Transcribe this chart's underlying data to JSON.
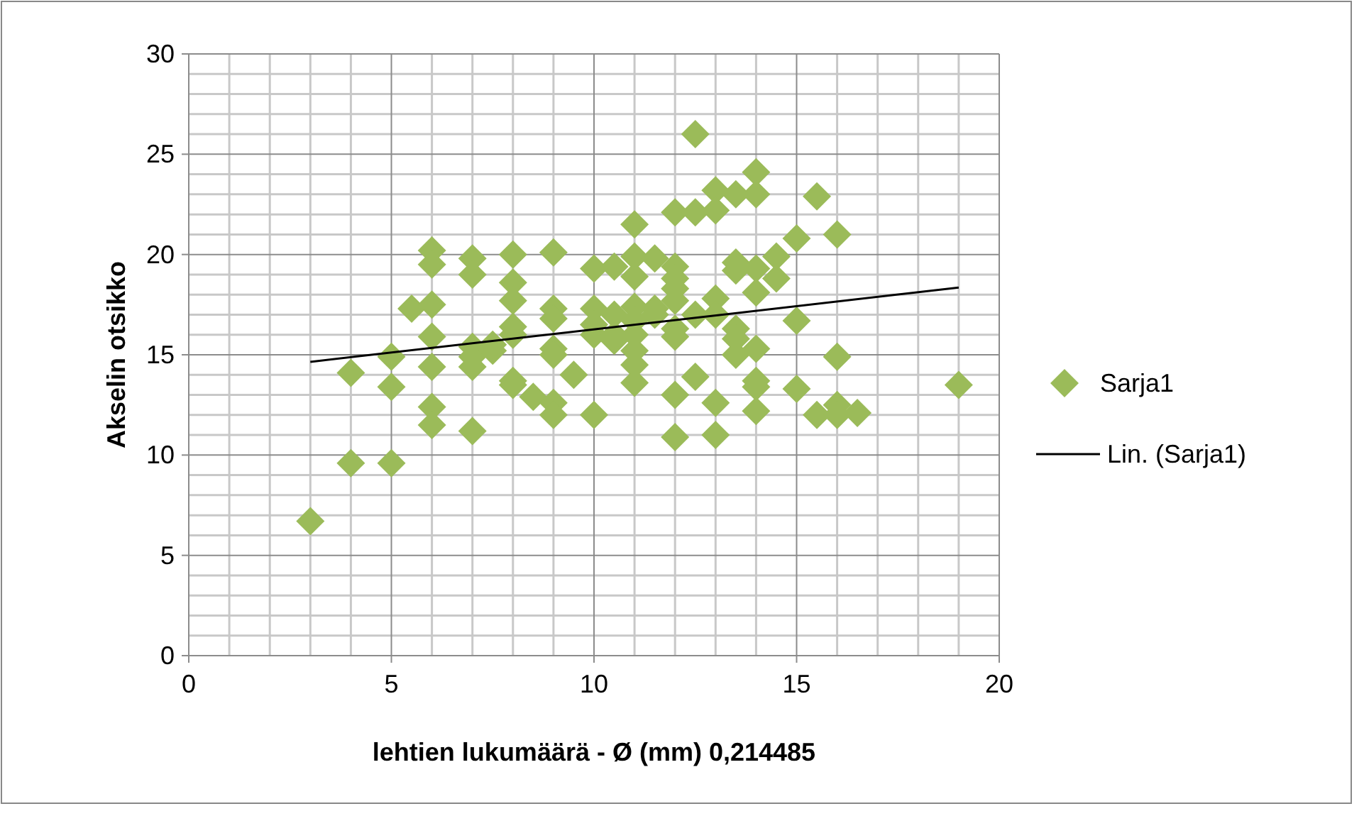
{
  "chart_data": {
    "type": "scatter",
    "xlabel": "lehtien lukumäärä - Ø (mm)  0,214485",
    "ylabel": "Akselin otsikko",
    "xlim": [
      0,
      20
    ],
    "xticks": [
      0,
      5,
      10,
      15,
      20
    ],
    "ylim": [
      0,
      30
    ],
    "yticks": [
      0,
      5,
      10,
      15,
      20,
      25,
      30
    ],
    "grid": true,
    "legend": "right",
    "series": [
      {
        "name": "Sarja1",
        "marker": "diamond",
        "color": "#9bbb59",
        "x": [
          3,
          4,
          4,
          5,
          5,
          5,
          5.5,
          6,
          6,
          6,
          6,
          6,
          6,
          6,
          7,
          7,
          7,
          7,
          7,
          7,
          7.5,
          7.5,
          8,
          8,
          8,
          8,
          8,
          8,
          8,
          8.5,
          9,
          9,
          9,
          9,
          9,
          9,
          9,
          9.5,
          10,
          10,
          10,
          10,
          10,
          10.5,
          10.5,
          10.5,
          10.5,
          11,
          11,
          11,
          11,
          11,
          11,
          11,
          11,
          11,
          11.5,
          11.5,
          11.5,
          12,
          12,
          12,
          12,
          12,
          12,
          12,
          12,
          12,
          12.5,
          12.5,
          12.5,
          12.5,
          13,
          13,
          13,
          13,
          13,
          13,
          13.5,
          13.5,
          13.5,
          13.5,
          13.5,
          13.5,
          14,
          14,
          14,
          14,
          14,
          14,
          14,
          14,
          14.5,
          14.5,
          15,
          15,
          15,
          15.5,
          15.5,
          16,
          16,
          16,
          16,
          16.5,
          19
        ],
        "values": [
          6.7,
          14.1,
          9.6,
          9.6,
          13.4,
          14.9,
          17.3,
          20.2,
          19.5,
          17.5,
          15.9,
          14.4,
          12.4,
          11.5,
          19.8,
          19,
          15.4,
          14.9,
          14.4,
          11.2,
          15.2,
          15.5,
          20,
          18.6,
          17.7,
          16.4,
          16,
          13.7,
          13.5,
          12.9,
          20.1,
          17.3,
          16.8,
          15.3,
          15,
          12.6,
          12,
          14,
          19.3,
          17.3,
          16.5,
          16,
          12,
          19.4,
          17,
          16,
          15.7,
          21.5,
          19.9,
          18.9,
          17.4,
          16.7,
          16,
          15.2,
          14.5,
          13.6,
          19.8,
          17.3,
          17,
          22.1,
          19.4,
          18.8,
          18.3,
          17.7,
          16.3,
          15.9,
          13,
          10.9,
          26,
          22.1,
          17,
          13.9,
          23.2,
          22.2,
          17.8,
          17,
          12.6,
          11,
          23,
          19.6,
          19.2,
          16.3,
          15.8,
          15,
          24.1,
          23,
          19.3,
          18.1,
          15.3,
          13.7,
          13.4,
          12.2,
          19.9,
          18.8,
          20.8,
          16.7,
          13.3,
          22.9,
          12,
          21,
          14.9,
          12.5,
          12,
          12.1,
          13.5
        ]
      },
      {
        "name": "Lin. (Sarja1)",
        "type": "line",
        "marker": "none",
        "color": "#000000",
        "x": [
          3,
          19
        ],
        "values": [
          14.65,
          18.35
        ]
      }
    ]
  }
}
